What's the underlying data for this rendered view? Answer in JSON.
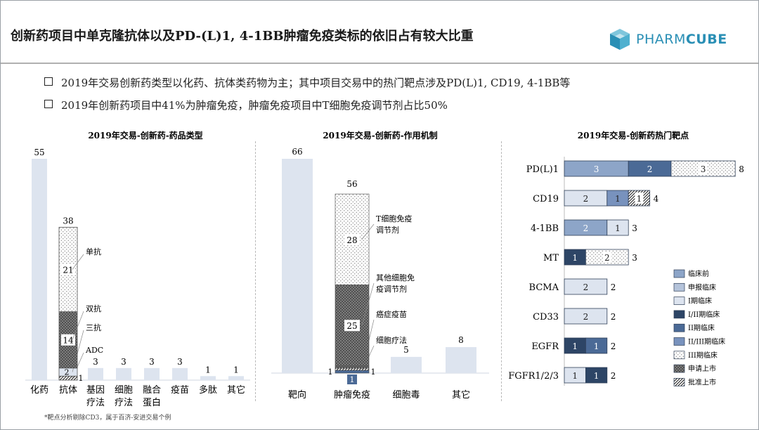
{
  "title": "创新药项目中单克隆抗体以及PD-(L)1, 4-1BB肿瘤免疫类标的依旧占有较大比重",
  "logo": {
    "text_light": "PHARM",
    "text_bold": "CUBE",
    "icon": "cube-logo-icon"
  },
  "bullets": [
    "2019年交易创新药类型以化药、抗体类药物为主；其中项目交易中的热门靶点涉及PD(L)1, CD19, 4-1BB等",
    "2019年创新药项目中41%为肿瘤免疫，肿瘤免疫项目中T细胞免疫调节剂占比50%"
  ],
  "footnote": "*靶点分析剔除CD3，属于百济-安进交易个例",
  "colors": {
    "bar_light": "#dde4ef",
    "dark_hatch": "#555555",
    "stage_preclinical": "#8da5c8",
    "stage_ind": "#b4c3da",
    "stage_phase1": "#dde4ef",
    "stage_phase1_2": "#2d4566",
    "stage_phase2": "#4b6a96",
    "stage_phase2_3": "#7892bd",
    "stage_marketed": "#666666"
  },
  "chart_data": [
    {
      "type": "bar",
      "title": "2019年交易-创新药-药品类型",
      "categories": [
        "化药",
        "抗体",
        "基因疗法",
        "细胞疗法",
        "融合蛋白",
        "疫苗",
        "多肽",
        "其它"
      ],
      "category_lines": [
        [
          "化药"
        ],
        [
          "抗体"
        ],
        [
          "基因",
          "疗法"
        ],
        [
          "细胞",
          "疗法"
        ],
        [
          "融合",
          "蛋白"
        ],
        [
          "疫苗"
        ],
        [
          "多肽"
        ],
        [
          "其它"
        ]
      ],
      "values": [
        55,
        38,
        3,
        3,
        3,
        3,
        1,
        1
      ],
      "stacked_breakdown": {
        "category": "抗体",
        "segments": [
          {
            "name": "ADC",
            "value": 1,
            "pattern": "diagonal"
          },
          {
            "name": "三抗",
            "value": 2,
            "pattern": "light"
          },
          {
            "name": "双抗",
            "value": 14,
            "pattern": "dark"
          },
          {
            "name": "单抗",
            "value": 21,
            "pattern": "dots"
          }
        ]
      },
      "ylim": [
        0,
        55
      ]
    },
    {
      "type": "bar",
      "title": "2019年交易-创新药-作用机制",
      "categories": [
        "靶向",
        "肿瘤免疫",
        "细胞毒",
        "其它"
      ],
      "values": [
        66,
        56,
        5,
        8
      ],
      "stacked_breakdown": {
        "category": "肿瘤免疫",
        "segments": [
          {
            "name": "细胞疗法",
            "value": 1,
            "pattern": "blue",
            "left_label": "1"
          },
          {
            "name": "癌症疫苗",
            "value": 1,
            "pattern": "diagonal"
          },
          {
            "name": "",
            "value": 1,
            "pattern": "dark",
            "side_label": "1"
          },
          {
            "name": "其他细胞免疫调节剂",
            "value": 25,
            "pattern": "dark"
          },
          {
            "name": "T细胞免疫调节剂",
            "value": 28,
            "pattern": "dots"
          }
        ]
      },
      "annotation_lines": {
        "T细胞免疫调节剂": [
          "T细胞免疫",
          "调节剂"
        ],
        "其他细胞免疫调节剂": [
          "其他细胞免",
          "疫调节剂"
        ],
        "癌症疫苗": [
          "癌症疫苗"
        ],
        "细胞疗法": [
          "细胞疗法"
        ]
      },
      "ylim": [
        0,
        66
      ]
    },
    {
      "type": "bar",
      "orientation": "horizontal",
      "stacked": true,
      "title": "2019年交易-创新药热门靶点",
      "categories": [
        "PD(L)1",
        "CD19",
        "4-1BB",
        "MT",
        "BCMA",
        "CD33",
        "EGFR",
        "FGFR1/2/3"
      ],
      "totals": [
        8,
        4,
        3,
        3,
        2,
        2,
        2,
        2
      ],
      "legend_position": "right",
      "series": [
        {
          "name": "临床前",
          "pattern": "preclinical",
          "values": [
            3,
            0,
            2,
            0,
            0,
            0,
            0,
            0
          ]
        },
        {
          "name": "申报临床",
          "pattern": "ind",
          "values": [
            0,
            0,
            0,
            0,
            0,
            0,
            0,
            0
          ]
        },
        {
          "name": "I期临床",
          "pattern": "phase1",
          "values": [
            0,
            2,
            1,
            0,
            2,
            2,
            0,
            1
          ]
        },
        {
          "name": "I/II期临床",
          "pattern": "phase1_2",
          "values": [
            0,
            0,
            0,
            1,
            0,
            0,
            1,
            1
          ]
        },
        {
          "name": "II期临床",
          "pattern": "phase2",
          "values": [
            2,
            0,
            0,
            0,
            0,
            0,
            1,
            0
          ]
        },
        {
          "name": "II/III期临床",
          "pattern": "phase2_3",
          "values": [
            0,
            1,
            0,
            0,
            0,
            0,
            0,
            0
          ]
        },
        {
          "name": "III期临床",
          "pattern": "dots",
          "values": [
            3,
            0,
            0,
            2,
            0,
            0,
            0,
            0
          ]
        },
        {
          "name": "申请上市",
          "pattern": "dark",
          "values": [
            0,
            0,
            0,
            0,
            0,
            0,
            0,
            0
          ]
        },
        {
          "name": "批准上市",
          "pattern": "diagonal",
          "values": [
            0,
            1,
            0,
            0,
            0,
            0,
            0,
            0
          ]
        }
      ],
      "xlim": [
        0,
        8
      ]
    }
  ]
}
